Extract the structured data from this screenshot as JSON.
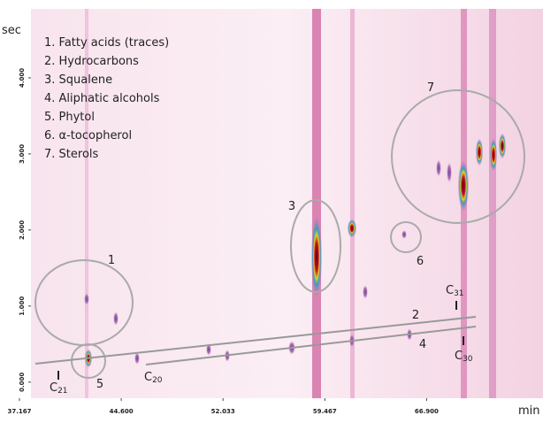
{
  "chart_data": {
    "type": "contour",
    "x_label": "min",
    "y_label": "sec",
    "xlim": [
      37.167,
      75.4
    ],
    "ylim": [
      -0.2,
      4.9
    ],
    "xticks": [
      {
        "value": 37.167,
        "label": "37.167"
      },
      {
        "value": 44.6,
        "label": "44.600"
      },
      {
        "value": 52.033,
        "label": "52.033"
      },
      {
        "value": 59.467,
        "label": "59.467"
      },
      {
        "value": 66.9,
        "label": "66.900"
      }
    ],
    "yticks": [
      {
        "value": 0,
        "label": "0.000"
      },
      {
        "value": 1,
        "label": "1.000"
      },
      {
        "value": 2,
        "label": "2.000"
      },
      {
        "value": 3,
        "label": "3.000"
      },
      {
        "value": 4,
        "label": "4.000"
      }
    ],
    "legend": [
      "1.  Fatty acids (traces)",
      "2.  Hydrocarbons",
      "3.  Squalene",
      "4.  Aliphatic alcohols",
      "5.  Phytol",
      "6.  α-tocopherol",
      "7.  Sterols"
    ],
    "annotations": [
      "1",
      "2",
      "3",
      "4",
      "5",
      "6",
      "7"
    ],
    "carbon_labels": [
      {
        "base": "C",
        "sub": "21"
      },
      {
        "base": "C",
        "sub": "20"
      },
      {
        "base": "C",
        "sub": "31"
      },
      {
        "base": "C",
        "sub": "30"
      }
    ]
  }
}
